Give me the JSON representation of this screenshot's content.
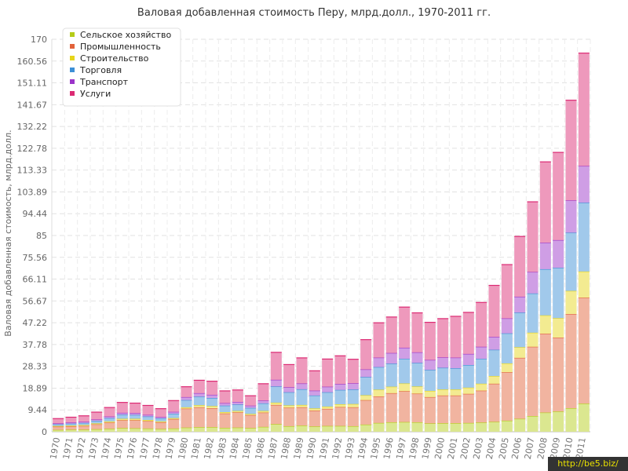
{
  "chart_data": {
    "type": "bar",
    "stacked": true,
    "title": "Валовая добавленная стоимость Перу, млрд.долл., 1970-2011 гг.",
    "xlabel": "",
    "ylabel": "Валовая добавленная стоимость, млрд.долл.",
    "ylim": [
      0,
      170
    ],
    "yticks": [
      "0",
      "9.44",
      "18.89",
      "28.33",
      "37.78",
      "47.22",
      "56.67",
      "66.11",
      "75.56",
      "85",
      "94.44",
      "103.89",
      "113.33",
      "122.78",
      "132.22",
      "141.67",
      "151.11",
      "160.56",
      "170"
    ],
    "grid": true,
    "legend_position": "top-left",
    "categories": [
      "1970",
      "1971",
      "1972",
      "1973",
      "1974",
      "1975",
      "1976",
      "1977",
      "1978",
      "1979",
      "1980",
      "1981",
      "1982",
      "1983",
      "1984",
      "1985",
      "1986",
      "1987",
      "1988",
      "1989",
      "1990",
      "1991",
      "1992",
      "1993",
      "1994",
      "1995",
      "1996",
      "1997",
      "1998",
      "1999",
      "2000",
      "2001",
      "2002",
      "2003",
      "2004",
      "2005",
      "2006",
      "2007",
      "2008",
      "2009",
      "2010",
      "2011"
    ],
    "series": [
      {
        "name": "Сельское хозяйство",
        "color": "#b5cc18",
        "values": [
          0.8,
          0.9,
          0.9,
          1.1,
          1.3,
          1.6,
          1.5,
          1.4,
          1.2,
          1.4,
          1.8,
          2.0,
          2.0,
          1.7,
          1.8,
          1.6,
          2.1,
          3.3,
          2.4,
          2.7,
          2.3,
          2.5,
          2.5,
          2.4,
          3.1,
          3.8,
          4.1,
          4.2,
          4.1,
          3.6,
          3.7,
          3.7,
          3.8,
          4.0,
          4.3,
          4.8,
          5.6,
          6.8,
          8.3,
          8.8,
          10.2,
          12.2
        ]
      },
      {
        "name": "Промышленность",
        "color": "#e2623a",
        "values": [
          1.4,
          1.5,
          1.6,
          2.1,
          2.7,
          3.4,
          3.5,
          3.2,
          2.9,
          4.1,
          8.2,
          8.6,
          8.2,
          6.2,
          6.6,
          5.6,
          6.2,
          8.3,
          8.0,
          7.9,
          6.9,
          7.4,
          8.2,
          8.2,
          10.6,
          11.5,
          12.6,
          13.4,
          12.4,
          11.4,
          12.0,
          12.0,
          12.6,
          13.8,
          16.5,
          21.0,
          26.4,
          30.0,
          34.2,
          32.0,
          40.8,
          45.9
        ]
      },
      {
        "name": "Строительство",
        "color": "#e6d51a",
        "values": [
          0.3,
          0.3,
          0.4,
          0.4,
          0.5,
          0.6,
          0.6,
          0.5,
          0.4,
          0.4,
          0.6,
          0.9,
          0.9,
          0.6,
          0.6,
          0.5,
          0.7,
          1.0,
          1.0,
          1.0,
          0.9,
          1.0,
          1.2,
          1.4,
          2.1,
          2.9,
          2.8,
          3.3,
          3.1,
          2.7,
          2.6,
          2.6,
          2.7,
          3.0,
          3.3,
          3.8,
          4.6,
          6.1,
          7.9,
          8.4,
          10.0,
          11.3
        ]
      },
      {
        "name": "Торговля",
        "color": "#3c8fd6",
        "values": [
          0.7,
          0.8,
          0.9,
          1.1,
          1.4,
          1.8,
          1.7,
          1.5,
          1.3,
          1.9,
          3.1,
          3.7,
          3.5,
          2.8,
          2.8,
          2.6,
          3.3,
          7.0,
          5.7,
          6.8,
          5.6,
          6.2,
          6.2,
          6.3,
          7.9,
          9.8,
          10.0,
          10.7,
          10.2,
          9.1,
          9.4,
          9.2,
          9.8,
          10.8,
          11.4,
          13.0,
          15.0,
          17.0,
          20.0,
          21.8,
          25.2,
          29.8
        ]
      },
      {
        "name": "Транспорт",
        "color": "#9b34c9",
        "values": [
          0.4,
          0.5,
          0.5,
          0.6,
          0.7,
          0.8,
          0.8,
          0.7,
          0.6,
          0.8,
          1.3,
          1.5,
          1.4,
          1.1,
          1.1,
          1.0,
          1.2,
          2.9,
          2.2,
          2.5,
          2.1,
          2.4,
          2.6,
          2.7,
          3.3,
          4.1,
          4.6,
          4.8,
          4.6,
          4.3,
          4.5,
          4.6,
          4.8,
          5.2,
          5.6,
          6.5,
          6.9,
          9.3,
          11.5,
          12.0,
          14.0,
          15.9
        ]
      },
      {
        "name": "Услуги",
        "color": "#dc2a73",
        "values": [
          2.1,
          2.3,
          2.6,
          3.2,
          3.9,
          4.5,
          4.3,
          4.1,
          3.6,
          4.9,
          4.5,
          5.6,
          5.9,
          5.3,
          5.2,
          4.3,
          7.3,
          11.9,
          9.8,
          11.1,
          8.6,
          12.0,
          12.2,
          10.4,
          12.9,
          15.1,
          15.6,
          17.6,
          17.1,
          16.3,
          16.8,
          17.9,
          18.0,
          19.2,
          22.3,
          23.3,
          26.1,
          30.4,
          35.0,
          38.0,
          43.4,
          48.9
        ]
      }
    ]
  },
  "watermark": "http://be5.biz/"
}
